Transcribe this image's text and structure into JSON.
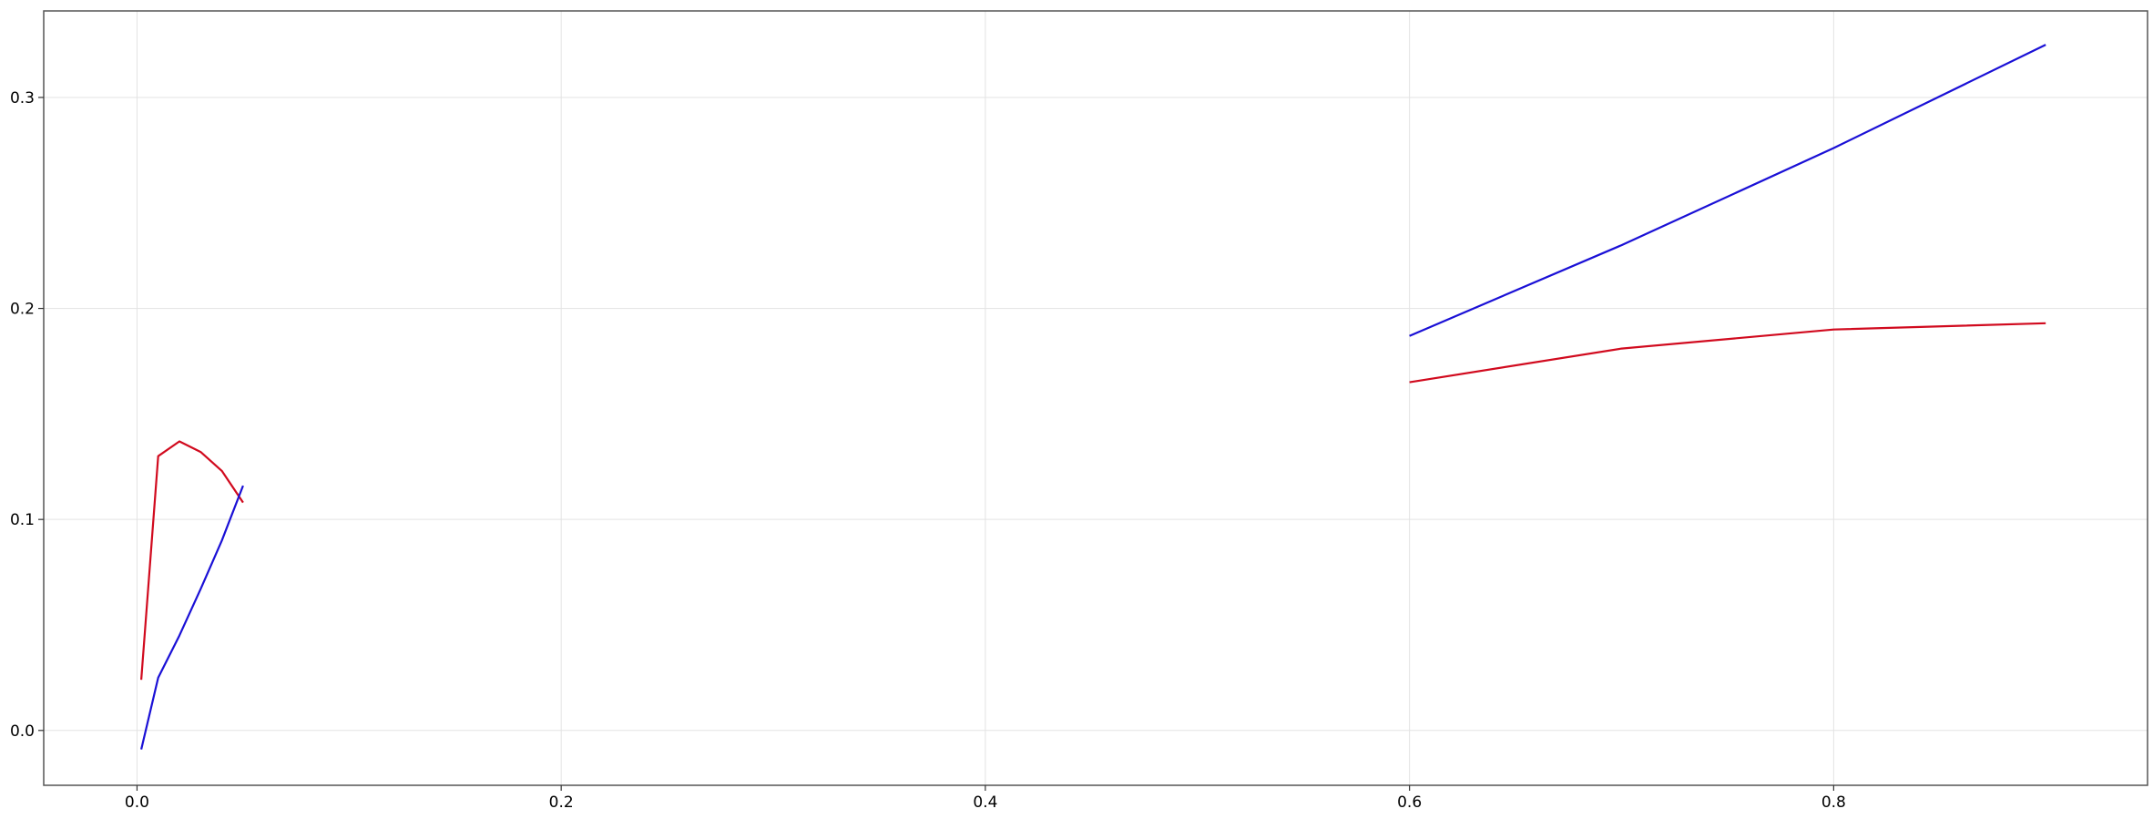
{
  "chart_data": {
    "type": "line",
    "title": "",
    "xlabel": "",
    "ylabel": "",
    "xlim": [
      -0.044,
      0.948
    ],
    "ylim": [
      -0.026,
      0.341
    ],
    "grid": true,
    "x_ticks": [
      0.0,
      0.2,
      0.4,
      0.6,
      0.8
    ],
    "x_tick_labels": [
      "0.0",
      "0.2",
      "0.4",
      "0.6",
      "0.8"
    ],
    "y_ticks": [
      0.0,
      0.1,
      0.2,
      0.3
    ],
    "y_tick_labels": [
      "0.0",
      "0.1",
      "0.2",
      "0.3"
    ],
    "series": [
      {
        "color": "#d10a1e",
        "segments": [
          {
            "x": [
              0.002,
              0.01,
              0.02,
              0.03,
              0.04,
              0.05
            ],
            "y": [
              0.024,
              0.13,
              0.137,
              0.132,
              0.123,
              0.108
            ]
          },
          {
            "x": [
              0.6,
              0.7,
              0.8,
              0.9
            ],
            "y": [
              0.165,
              0.181,
              0.19,
              0.193
            ]
          }
        ]
      },
      {
        "color": "#1a10d6",
        "segments": [
          {
            "x": [
              0.002,
              0.01,
              0.02,
              0.03,
              0.04,
              0.05
            ],
            "y": [
              -0.009,
              0.025,
              0.045,
              0.067,
              0.09,
              0.116
            ]
          },
          {
            "x": [
              0.6,
              0.7,
              0.8,
              0.9
            ],
            "y": [
              0.187,
              0.23,
              0.276,
              0.325
            ]
          }
        ]
      }
    ]
  }
}
